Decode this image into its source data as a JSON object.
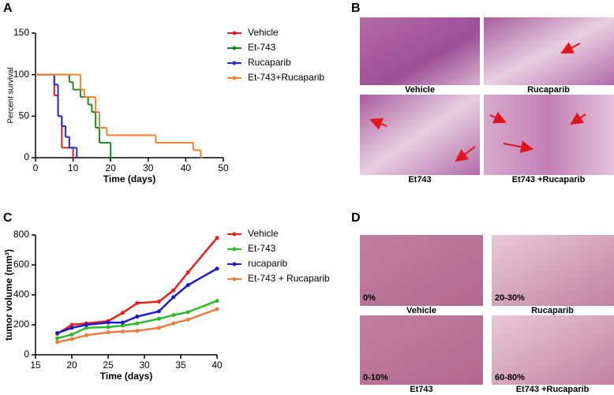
{
  "chart_data": [
    {
      "type": "survival",
      "panel": "A",
      "xlabel": "Time (days)",
      "ylabel": "Percent survival",
      "xlim": [
        0,
        50
      ],
      "xticks": [
        0,
        10,
        20,
        30,
        40,
        50
      ],
      "ylim": [
        0,
        150
      ],
      "yticks": [
        0,
        50,
        100,
        150
      ],
      "series": [
        {
          "name": "Vehicle",
          "color": "#e21f26",
          "x": [
            0,
            5,
            6,
            7,
            10
          ],
          "values": [
            100,
            75,
            50,
            12,
            0
          ]
        },
        {
          "name": "Et-743",
          "color": "#1c8a1c",
          "x": [
            0,
            9,
            10,
            12,
            14,
            15,
            16,
            17,
            20
          ],
          "values": [
            100,
            91,
            82,
            73,
            64,
            55,
            36,
            18,
            0
          ]
        },
        {
          "name": "Rucaparib",
          "color": "#1c2fd0",
          "x": [
            0,
            5,
            6,
            7,
            8,
            9,
            11
          ],
          "values": [
            100,
            88,
            50,
            38,
            25,
            12,
            0
          ]
        },
        {
          "name": "Et-743+Rucaparib",
          "color": "#f7812c",
          "x": [
            0,
            12,
            13,
            16,
            17,
            19,
            32,
            42,
            44
          ],
          "values": [
            100,
            82,
            73,
            55,
            36,
            27,
            18,
            9,
            0
          ]
        }
      ]
    },
    {
      "type": "line",
      "panel": "C",
      "xlabel": "Time (days)",
      "ylabel": "tumor volume (mm³)",
      "xlim": [
        15,
        40
      ],
      "xticks": [
        15,
        20,
        25,
        30,
        35,
        40
      ],
      "ylim": [
        0,
        800
      ],
      "yticks": [
        0,
        200,
        400,
        600,
        800
      ],
      "x": [
        18,
        20,
        22,
        25,
        27,
        29,
        32,
        34,
        36,
        40
      ],
      "series": [
        {
          "name": "Vehicle",
          "color": "#e8201c",
          "values": [
            140,
            200,
            210,
            225,
            280,
            345,
            355,
            430,
            550,
            780
          ]
        },
        {
          "name": "Et-743",
          "color": "#2bbb2b",
          "values": [
            110,
            135,
            180,
            185,
            195,
            210,
            240,
            265,
            285,
            360
          ]
        },
        {
          "name": "rucaparib",
          "color": "#1a1ad0",
          "values": [
            145,
            180,
            200,
            215,
            215,
            255,
            290,
            385,
            465,
            575
          ]
        },
        {
          "name": "Et-743 + Rucaparib",
          "color": "#f07a40",
          "values": [
            85,
            105,
            130,
            150,
            155,
            160,
            180,
            210,
            235,
            305
          ]
        }
      ]
    }
  ],
  "panel_b": {
    "letter": "B",
    "captions": [
      "Vehicle",
      "Rucaparib",
      "Et743",
      "Et743 +Rucaparib"
    ]
  },
  "panel_d": {
    "letter": "D",
    "captions": [
      "Vehicle",
      "Rucaparib",
      "Et743",
      "Et743 +Rucaparib"
    ],
    "percents": [
      "0%",
      "20-30%",
      "0-10%",
      "60-80%"
    ]
  }
}
